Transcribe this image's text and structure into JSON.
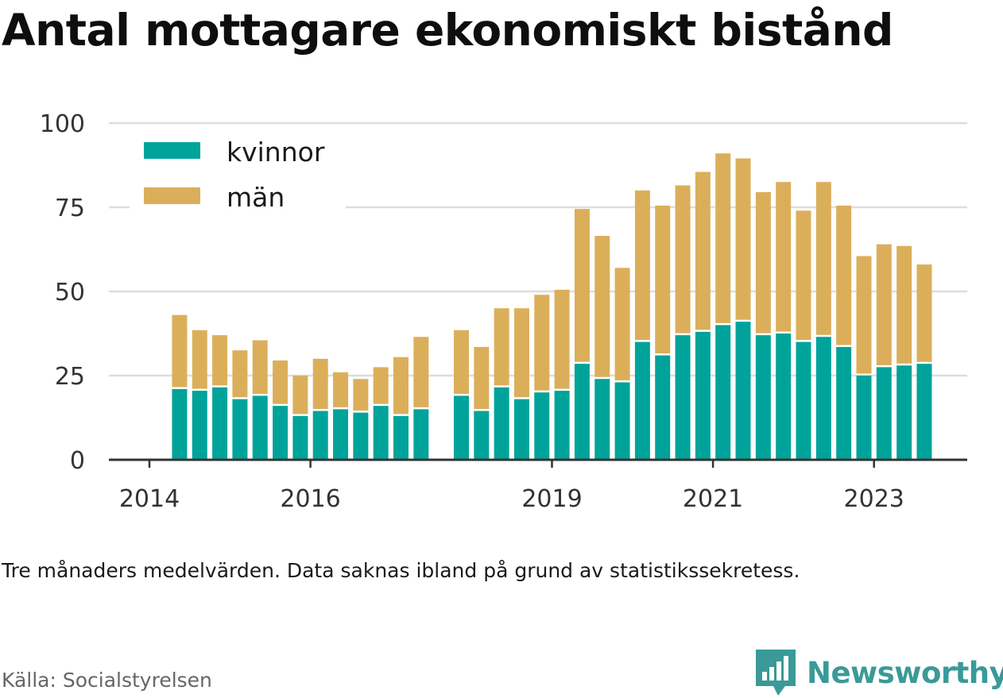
{
  "title": "Antal mottagare ekonomiskt bistånd",
  "note": "Tre månaders medelvärden. Data saknas ibland på grund av statistikssekretess.",
  "source": "Källa: Socialstyrelsen",
  "brand": "Newsworthy",
  "colors": {
    "kvinnor": "#00a39a",
    "man": "#dbaf5a",
    "grid": "#dddddd",
    "axis": "#333333",
    "brand": "#3a9a98"
  },
  "chart_data": {
    "type": "bar",
    "stacked": true,
    "ylim": [
      0,
      100
    ],
    "yticks": [
      0,
      25,
      50,
      75,
      100
    ],
    "xticks": [
      "2014",
      "2016",
      "2019",
      "2021",
      "2023"
    ],
    "legend": {
      "placement": "top-left",
      "entries": [
        "kvinnor",
        "män"
      ]
    },
    "categories": [
      "2014-Q2",
      "2014-Q3",
      "2014-Q4",
      "2015-Q1",
      "2015-Q2",
      "2015-Q3",
      "2015-Q4",
      "2016-Q1",
      "2016-Q2",
      "2016-Q3",
      "2016-Q4",
      "2017-Q1",
      "2017-Q2",
      "2017-Q3",
      "2017-Q4",
      "2018-Q1",
      "2018-Q2",
      "2018-Q3",
      "2018-Q4",
      "2019-Q1",
      "2019-Q2",
      "2019-Q3",
      "2019-Q4",
      "2020-Q1",
      "2020-Q2",
      "2020-Q3",
      "2020-Q4",
      "2021-Q1",
      "2021-Q2",
      "2021-Q3",
      "2021-Q4",
      "2022-Q1",
      "2022-Q2",
      "2022-Q3",
      "2022-Q4",
      "2023-Q1",
      "2023-Q2",
      "2023-Q3"
    ],
    "series": [
      {
        "name": "kvinnor",
        "values": [
          21,
          20.5,
          21.5,
          18,
          19,
          16,
          13,
          14.5,
          15,
          14,
          16,
          13,
          15,
          null,
          19,
          14.5,
          21.5,
          18,
          20,
          20.5,
          28.5,
          24,
          23,
          35,
          31,
          37,
          38,
          40,
          41,
          37,
          37.5,
          35,
          36.5,
          33.5,
          25,
          27.5,
          28,
          28.5
        ]
      },
      {
        "name": "män",
        "values": [
          22,
          18,
          15.5,
          14.5,
          16.5,
          13.5,
          12,
          15.5,
          11,
          10,
          11.5,
          17.5,
          21.5,
          null,
          19.5,
          19,
          23.5,
          27,
          29,
          30,
          46,
          42.5,
          34,
          45,
          44.5,
          44.5,
          47.5,
          51,
          48.5,
          42.5,
          45,
          39,
          46,
          42,
          35.5,
          36.5,
          35.5,
          29.5
        ]
      }
    ]
  }
}
